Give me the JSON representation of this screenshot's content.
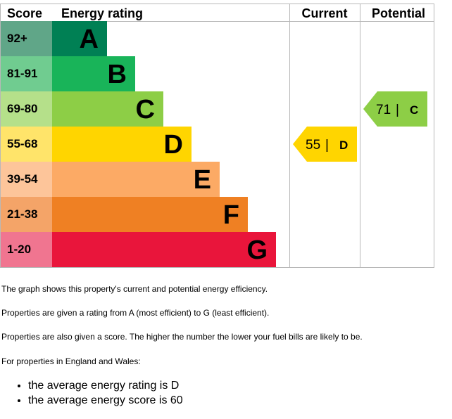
{
  "chart_data": {
    "type": "bar",
    "headers": {
      "score": "Score",
      "rating": "Energy rating",
      "current": "Current",
      "potential": "Potential"
    },
    "bands": [
      {
        "letter": "A",
        "range": "92+",
        "color": "#008054",
        "score_color": "#60a688"
      },
      {
        "letter": "B",
        "range": "81-91",
        "color": "#19b459",
        "score_color": "#70cc90"
      },
      {
        "letter": "C",
        "range": "69-80",
        "color": "#8dce46",
        "score_color": "#b5e08a"
      },
      {
        "letter": "D",
        "range": "55-68",
        "color": "#ffd500",
        "score_color": "#ffe46a"
      },
      {
        "letter": "E",
        "range": "39-54",
        "color": "#fcaa65",
        "score_color": "#fdc59a"
      },
      {
        "letter": "F",
        "range": "21-38",
        "color": "#ef8023",
        "score_color": "#f4a468"
      },
      {
        "letter": "G",
        "range": "1-20",
        "color": "#e9153b",
        "score_color": "#f07590"
      }
    ],
    "current": {
      "score": "55",
      "letter": "D",
      "band_index": 3
    },
    "potential": {
      "score": "71",
      "letter": "C",
      "band_index": 2
    }
  },
  "description": [
    "The graph shows this property's current and potential energy efficiency.",
    "Properties are given a rating from A (most efficient) to G (least efficient).",
    "Properties are also given a score. The higher the number the lower your fuel bills are likely to be.",
    "For properties in England and Wales:"
  ],
  "averages": [
    "the average energy rating is D",
    "the average energy score is 60"
  ]
}
